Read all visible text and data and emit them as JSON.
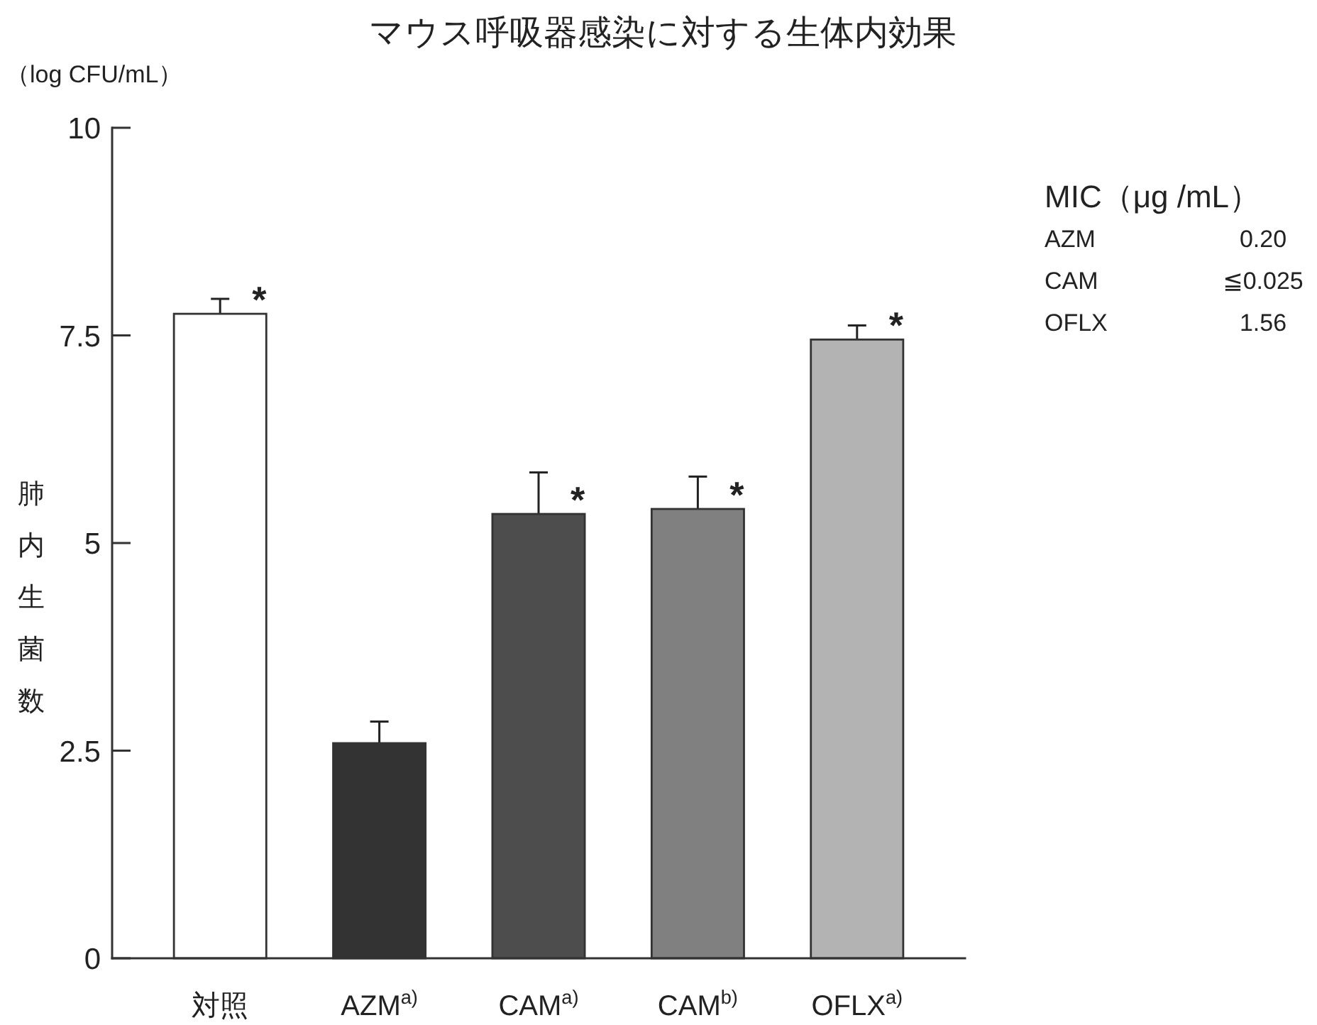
{
  "chart_data": {
    "type": "bar",
    "title": "マウス呼吸器感染に対する生体内効果",
    "ylabel": "肺内生菌数",
    "categories": [
      "対照",
      "AZM$^{a)}$",
      "CAM$^{a)}$",
      "CAM$^{b)}$",
      "OFLX$^{a)}$"
    ],
    "values": [
      7.76,
      2.59,
      5.35,
      5.41,
      7.45
    ],
    "colors": [
      "#ffffff",
      "#333333",
      "#4d4d4d",
      "#808080",
      "#b3b3b3"
    ],
    "errors": [
      [
        7.76,
        7.94
      ],
      [
        2.59,
        2.85
      ],
      [
        5.35,
        5.85
      ],
      [
        5.41,
        5.8
      ],
      [
        7.45,
        7.62
      ]
    ],
    "ylim": [
      0,
      10
    ],
    "yticks": [
      0,
      2.5,
      5,
      7.5,
      10
    ],
    "annotations": [
      {
        "text": "*",
        "x": "対照",
        "y": 7.76
      },
      {
        "text": "*",
        "x": "CAM$^{a)}$",
        "y": 5.35
      },
      {
        "text": "*",
        "x": "CAM$^{b)}$",
        "y": 5.41
      },
      {
        "text": "*",
        "x": "OFLX$^{a)}$",
        "y": 7.45
      },
      "（log CFU/mL）",
      "MIC（μg /mL）",
      "AZM",
      "0.20",
      "CAM",
      "≦0.025",
      "OFLX",
      "1.56"
    ]
  }
}
